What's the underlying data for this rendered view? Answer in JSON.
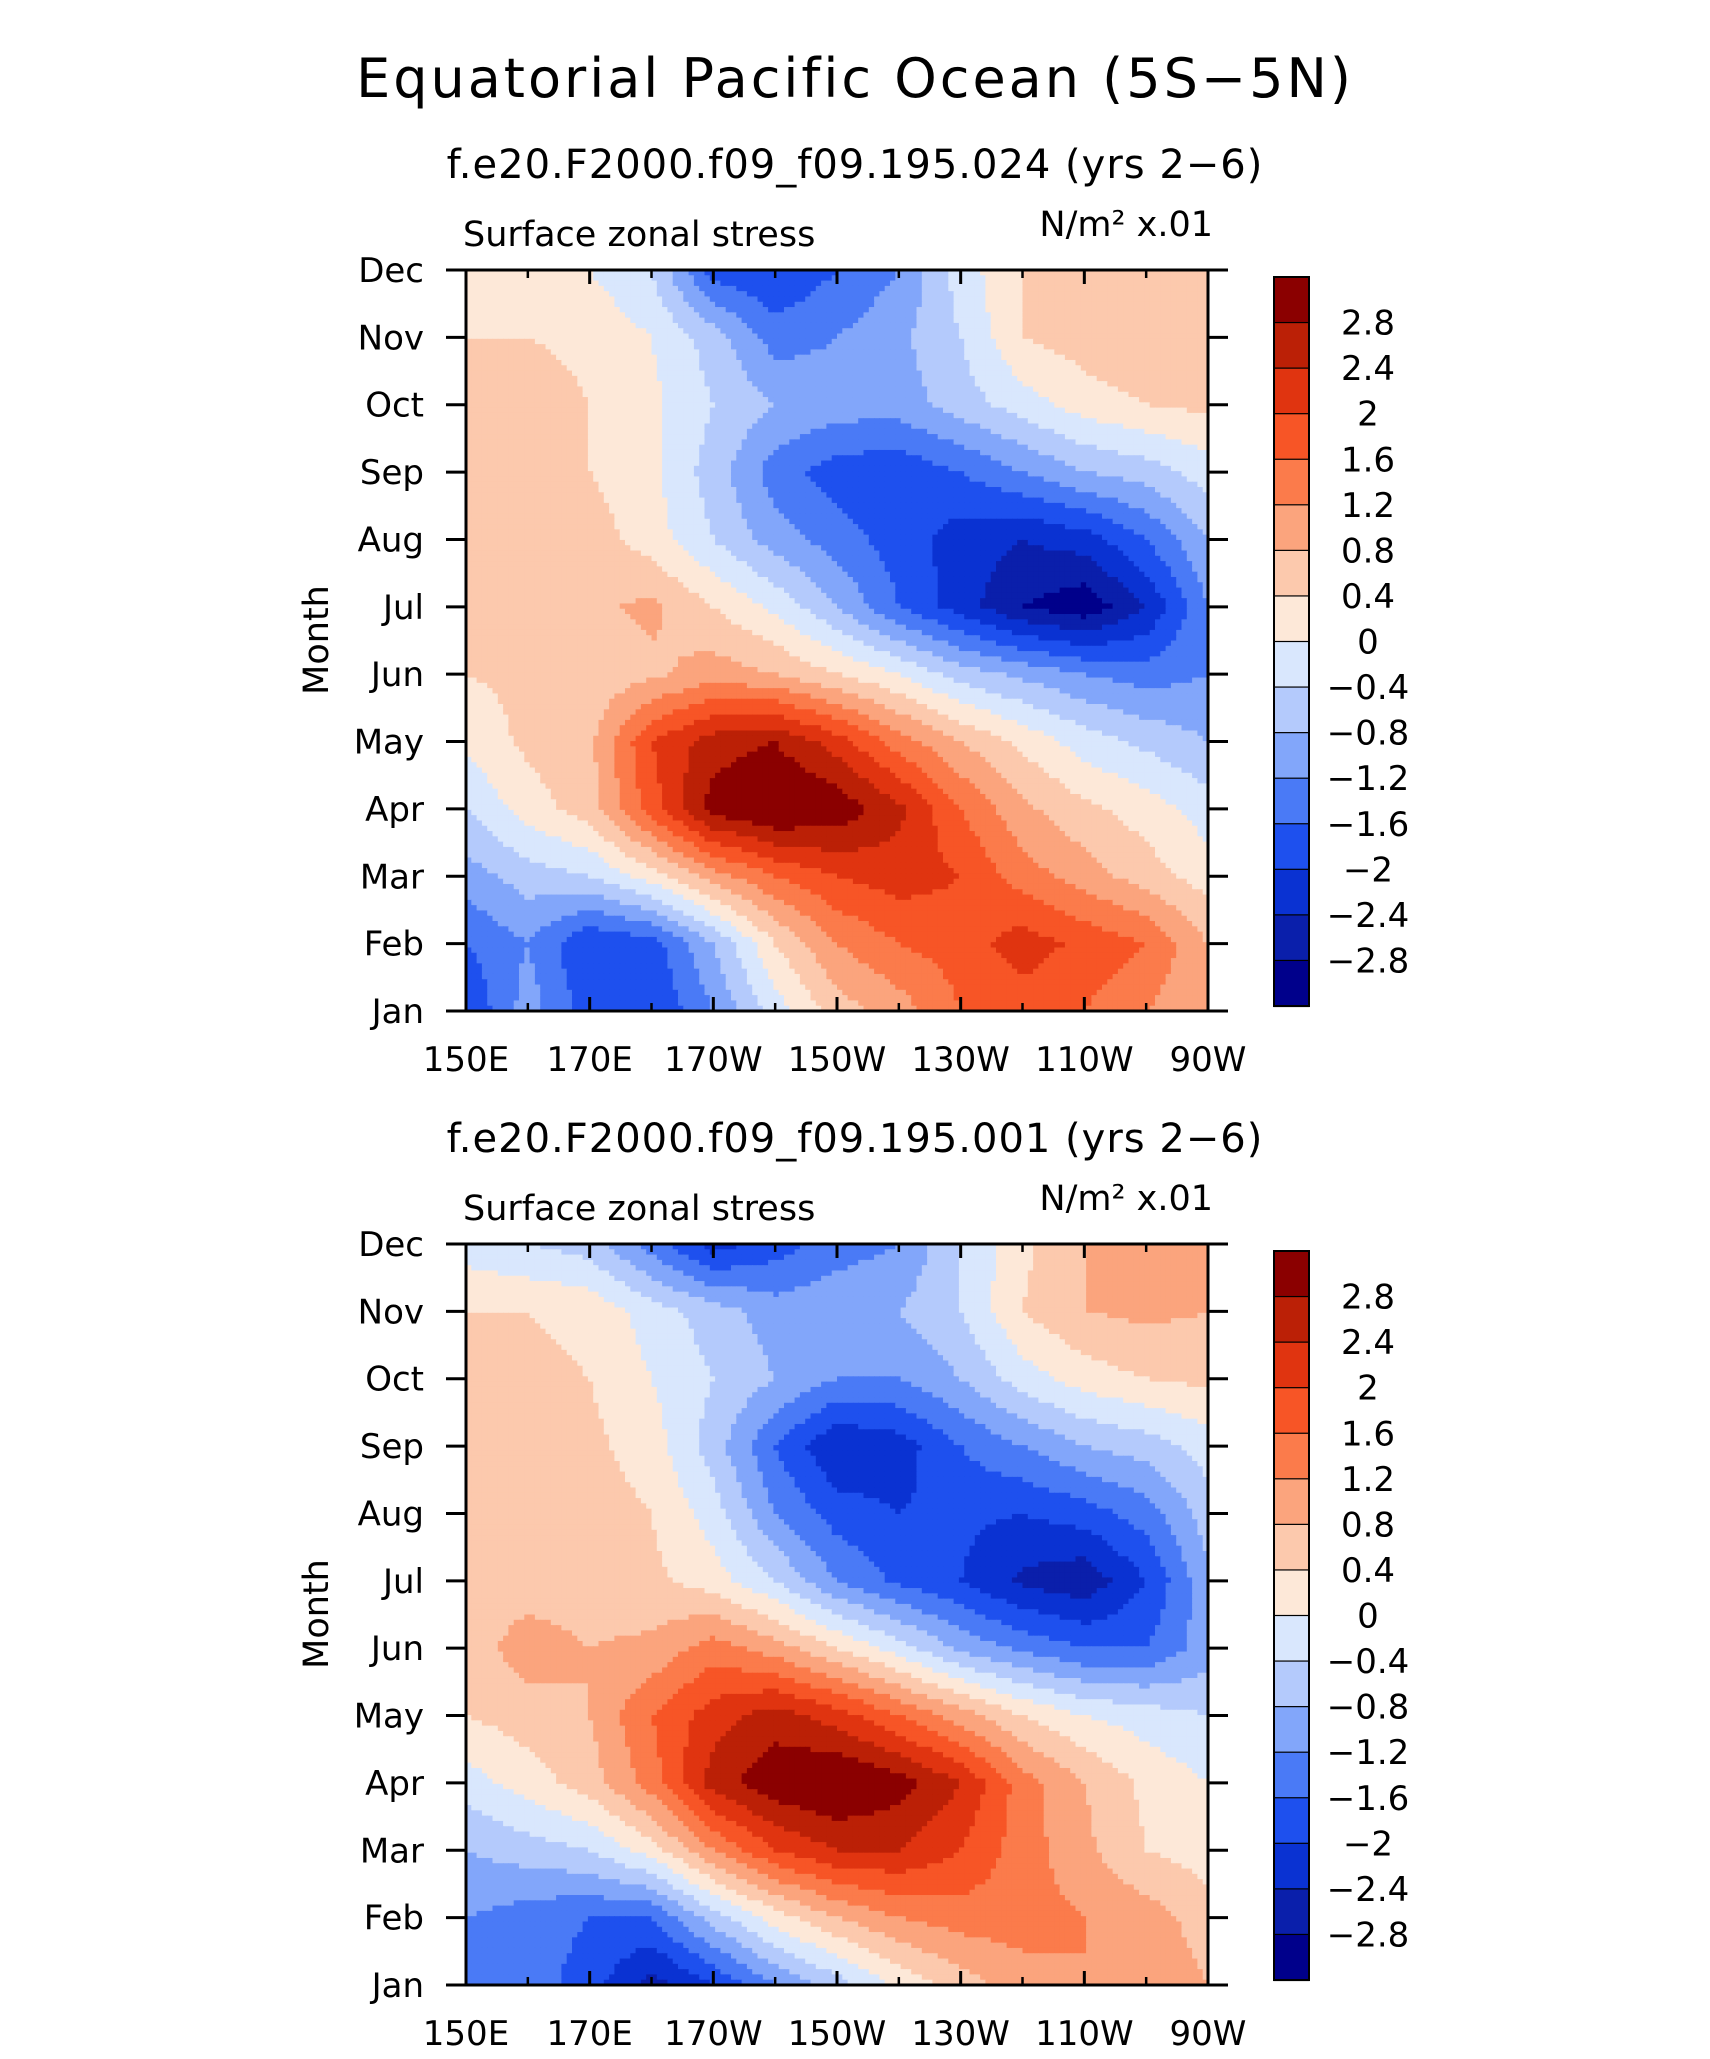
{
  "figure": {
    "title": "Equatorial Pacific Ocean (5S-5N)"
  },
  "colors": {
    "levels": [
      -3.2,
      -2.8,
      -2.4,
      -2.0,
      -1.6,
      -1.2,
      -0.8,
      -0.4,
      0,
      0.4,
      0.8,
      1.2,
      1.6,
      2.0,
      2.4,
      2.8,
      3.2
    ],
    "fills": [
      "#00008b",
      "#0a1fab",
      "#0a32d2",
      "#1e50ee",
      "#4a7af6",
      "#82a6fa",
      "#b4cafc",
      "#d9e7fd",
      "#fde8d8",
      "#fcc9ad",
      "#fba47d",
      "#fb7b4b",
      "#f75526",
      "#e03410",
      "#bb2006",
      "#8b0000"
    ]
  },
  "chart_data": [
    {
      "type": "heatmap",
      "title": "f.e20.F2000.f09_f09.195.024 (yrs 2-6)",
      "left_label": "Surface zonal stress",
      "units": "N/m² x.01",
      "ylabel": "Month",
      "x_ticklabels": [
        "150E",
        "170E",
        "170W",
        "150W",
        "130W",
        "110W",
        "90W"
      ],
      "y_ticklabels": [
        "Jan",
        "Feb",
        "Mar",
        "Apr",
        "May",
        "Jun",
        "Jul",
        "Aug",
        "Sep",
        "Oct",
        "Nov",
        "Dec"
      ],
      "colorbar_labels": [
        "2.8",
        "2.4",
        "2",
        "1.6",
        "1.2",
        "0.8",
        "0.4",
        "0",
        "-0.4",
        "-0.8",
        "-1.2",
        "-1.6",
        "-2",
        "-2.4",
        "-2.8"
      ],
      "x_lon_east": [
        150,
        160,
        170,
        180,
        190,
        200,
        210,
        220,
        230,
        240,
        250,
        260,
        270
      ],
      "months": [
        1,
        2,
        3,
        4,
        5,
        6,
        7,
        8,
        9,
        10,
        11,
        12
      ],
      "values": [
        [
          -2.0,
          -1.0,
          -1.8,
          -2.0,
          -1.2,
          -0.2,
          0.6,
          1.0,
          1.6,
          1.8,
          1.6,
          1.2,
          0.8
        ],
        [
          -1.6,
          -1.2,
          -2.0,
          -1.8,
          -0.8,
          0.4,
          1.2,
          1.6,
          1.8,
          2.2,
          1.9,
          1.6,
          0.8
        ],
        [
          -1.0,
          -0.6,
          -0.4,
          0.2,
          1.0,
          1.6,
          2.0,
          2.2,
          2.0,
          1.4,
          1.0,
          0.6,
          0.2
        ],
        [
          -0.4,
          0.2,
          0.6,
          1.8,
          3.0,
          3.3,
          3.1,
          2.5,
          1.6,
          0.9,
          0.5,
          0.2,
          -0.2
        ],
        [
          0.1,
          0.5,
          0.7,
          2.0,
          2.6,
          2.8,
          2.2,
          1.4,
          0.8,
          0.3,
          -0.2,
          -0.5,
          -0.8
        ],
        [
          0.4,
          0.5,
          0.5,
          0.7,
          1.0,
          0.8,
          0.4,
          0.0,
          -0.6,
          -0.9,
          -1.2,
          -1.4,
          -1.2
        ],
        [
          0.6,
          0.5,
          0.7,
          0.9,
          0.4,
          -0.1,
          -0.8,
          -1.6,
          -2.2,
          -2.8,
          -3.1,
          -2.4,
          -1.2
        ],
        [
          0.8,
          0.6,
          0.6,
          0.2,
          -0.4,
          -1.0,
          -1.4,
          -1.8,
          -2.2,
          -2.4,
          -2.2,
          -1.6,
          -0.8
        ],
        [
          0.6,
          0.6,
          0.4,
          0.1,
          -0.6,
          -1.4,
          -1.8,
          -1.9,
          -1.6,
          -1.2,
          -0.8,
          -0.6,
          -0.2
        ],
        [
          0.6,
          0.6,
          0.4,
          0.1,
          -0.4,
          -0.8,
          -1.0,
          -1.0,
          -0.6,
          -0.2,
          0.2,
          0.4,
          0.5
        ],
        [
          0.4,
          0.4,
          0.3,
          0.0,
          -0.6,
          -1.4,
          -1.2,
          -0.9,
          -0.4,
          0.4,
          0.6,
          0.8,
          0.6
        ],
        [
          0.2,
          0.2,
          0.0,
          -0.4,
          -1.8,
          -2.0,
          -1.6,
          -1.2,
          -0.2,
          0.4,
          0.8,
          0.8,
          0.7
        ]
      ]
    },
    {
      "type": "heatmap",
      "title": "f.e20.F2000.f09_f09.195.001 (yrs 2-6)",
      "left_label": "Surface zonal stress",
      "units": "N/m² x.01",
      "ylabel": "Month",
      "x_ticklabels": [
        "150E",
        "170E",
        "170W",
        "150W",
        "130W",
        "110W",
        "90W"
      ],
      "y_ticklabels": [
        "Jan",
        "Feb",
        "Mar",
        "Apr",
        "May",
        "Jun",
        "Jul",
        "Aug",
        "Sep",
        "Oct",
        "Nov",
        "Dec"
      ],
      "colorbar_labels": [
        "2.8",
        "2.4",
        "2",
        "1.6",
        "1.2",
        "0.8",
        "0.4",
        "0",
        "-0.4",
        "-0.8",
        "-1.2",
        "-1.6",
        "-2",
        "-2.4",
        "-2.8"
      ],
      "x_lon_east": [
        150,
        160,
        170,
        180,
        190,
        200,
        210,
        220,
        230,
        240,
        250,
        260,
        270
      ],
      "months": [
        1,
        2,
        3,
        4,
        5,
        6,
        7,
        8,
        9,
        10,
        11,
        12
      ],
      "values": [
        [
          -1.6,
          -1.4,
          -1.8,
          -2.6,
          -2.0,
          -1.2,
          -0.6,
          0.1,
          0.6,
          1.0,
          1.2,
          1.1,
          0.8
        ],
        [
          -1.2,
          -1.4,
          -1.6,
          -1.6,
          -0.6,
          0.2,
          0.8,
          1.2,
          1.4,
          1.4,
          1.2,
          1.0,
          0.6
        ],
        [
          -0.8,
          -0.6,
          -0.4,
          0.2,
          1.2,
          2.0,
          2.4,
          2.4,
          2.0,
          1.4,
          0.9,
          0.4,
          0.2
        ],
        [
          -0.2,
          0.2,
          0.6,
          1.4,
          2.6,
          3.1,
          3.3,
          3.0,
          2.4,
          1.4,
          0.8,
          0.3,
          0.0
        ],
        [
          0.4,
          0.6,
          0.8,
          1.6,
          2.2,
          2.6,
          2.2,
          1.6,
          1.0,
          0.4,
          0.0,
          -0.2,
          -0.4
        ],
        [
          0.6,
          1.0,
          0.8,
          0.9,
          1.4,
          1.0,
          0.4,
          -0.2,
          -0.9,
          -1.3,
          -1.6,
          -1.6,
          -1.0
        ],
        [
          0.6,
          0.6,
          0.6,
          0.5,
          0.2,
          -0.4,
          -1.2,
          -1.7,
          -2.0,
          -2.5,
          -2.7,
          -2.0,
          -0.9
        ],
        [
          0.6,
          0.6,
          0.6,
          0.4,
          -0.2,
          -1.2,
          -1.8,
          -2.0,
          -1.9,
          -2.0,
          -1.8,
          -1.4,
          -0.6
        ],
        [
          0.6,
          0.6,
          0.5,
          0.2,
          -0.6,
          -1.6,
          -2.4,
          -2.2,
          -1.6,
          -1.2,
          -0.8,
          -0.6,
          -0.2
        ],
        [
          0.5,
          0.5,
          0.4,
          0.0,
          -0.4,
          -0.8,
          -1.2,
          -1.2,
          -0.8,
          -0.2,
          0.2,
          0.4,
          0.5
        ],
        [
          0.4,
          0.4,
          0.3,
          -0.2,
          -0.6,
          -1.0,
          -0.9,
          -0.8,
          -0.4,
          0.4,
          0.8,
          0.9,
          0.8
        ],
        [
          -0.2,
          -0.4,
          -0.6,
          -1.4,
          -2.2,
          -1.8,
          -1.4,
          -1.2,
          -0.4,
          0.3,
          0.8,
          1.0,
          0.8
        ]
      ]
    }
  ]
}
